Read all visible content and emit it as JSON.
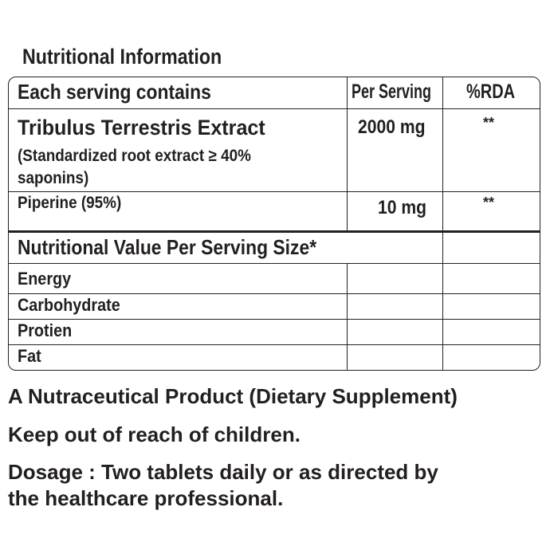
{
  "title": "Nutritional Information",
  "table": {
    "headers": [
      "Each serving contains",
      "Per Serving",
      "%RDA"
    ],
    "rows": [
      {
        "name": "Tribulus Terrestris Extract",
        "detail_line1": "(Standardized root extract  ≥ 40%",
        "detail_line2": "saponins)",
        "per_serving": "2000 mg",
        "rda": "**"
      },
      {
        "name": "Piperine (95%)",
        "per_serving": "10 mg",
        "rda": "**"
      }
    ],
    "nutrition_header": "Nutritional Value Per Serving Size*",
    "nutrition_rows": [
      "Energy",
      "Carbohydrate",
      "Protien",
      "Fat"
    ]
  },
  "footer": {
    "line1": "A Nutraceutical Product (Dietary Supplement)",
    "line2": "Keep out of reach of children.",
    "line3a": "Dosage : Two tablets daily or as directed by",
    "line3b": "the healthcare professional."
  }
}
